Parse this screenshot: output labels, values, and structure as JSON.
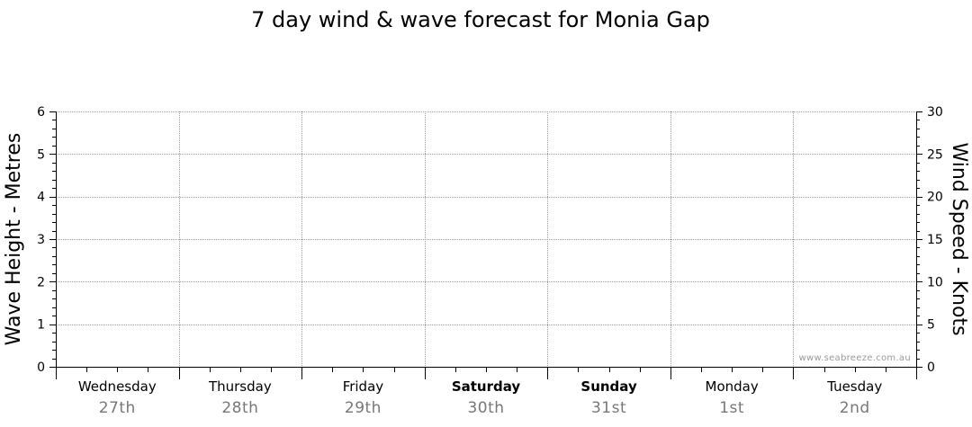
{
  "chart_data": {
    "type": "line",
    "title": "7 day wind & wave forecast for Monia Gap",
    "ylabel_left": "Wave Height - Metres",
    "ylabel_right": "Wind Speed - Knots",
    "ylim_left": [
      0,
      6
    ],
    "ylim_right": [
      0,
      30
    ],
    "yticks_left": [
      "0",
      "1",
      "2",
      "3",
      "4",
      "5",
      "6"
    ],
    "yticks_right": [
      "0",
      "5",
      "10",
      "15",
      "20",
      "25",
      "30"
    ],
    "days": [
      {
        "name": "Wednesday",
        "date": "27th",
        "weekend": false
      },
      {
        "name": "Thursday",
        "date": "28th",
        "weekend": false
      },
      {
        "name": "Friday",
        "date": "29th",
        "weekend": false
      },
      {
        "name": "Saturday",
        "date": "30th",
        "weekend": true
      },
      {
        "name": "Sunday",
        "date": "31st",
        "weekend": true
      },
      {
        "name": "Monday",
        "date": "1st",
        "weekend": false
      },
      {
        "name": "Tuesday",
        "date": "2nd",
        "weekend": false
      }
    ],
    "series": [],
    "grid": true,
    "watermark": "www.seabreeze.com.au"
  },
  "colors": {
    "grid": "#999999",
    "axis": "#000000",
    "date_text": "#777777",
    "watermark": "#999999"
  }
}
